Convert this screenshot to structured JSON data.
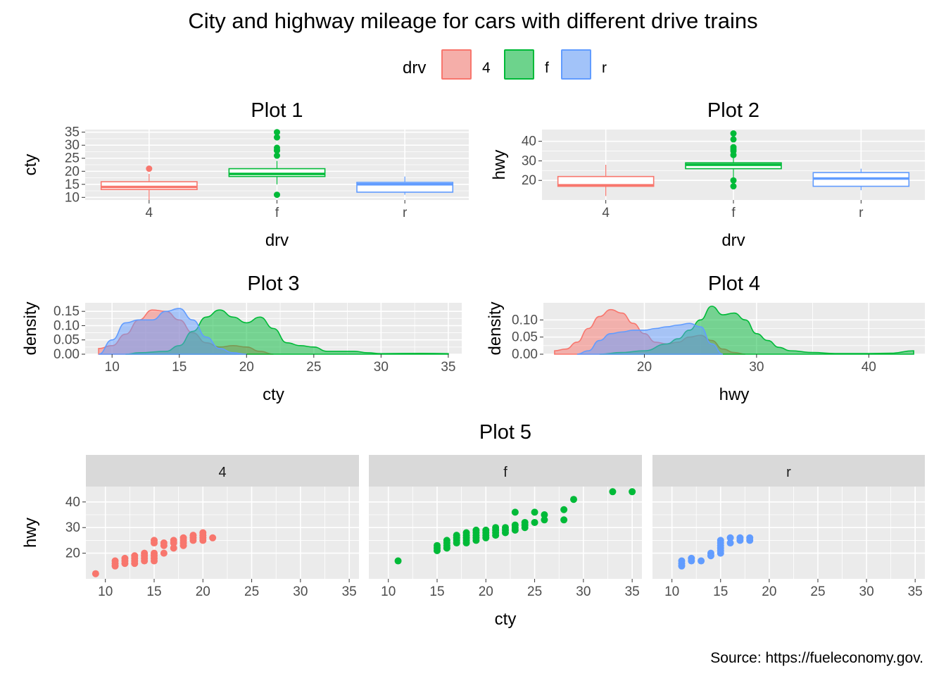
{
  "title": "City and highway mileage for cars with different drive trains",
  "caption": "Source: https://fueleconomy.gov.",
  "legend": {
    "title": "drv",
    "entries": [
      {
        "key": "4",
        "label": "4",
        "color": "#F8766D"
      },
      {
        "key": "f",
        "label": "f",
        "color": "#00BA38"
      },
      {
        "key": "r",
        "label": "r",
        "color": "#619CFF"
      }
    ]
  },
  "colors": {
    "panel_bg": "#EBEBEB",
    "grid": "#FFFFFF",
    "strip_bg": "#D9D9D9"
  },
  "chart_data": [
    {
      "id": "plot1",
      "title": "Plot 1",
      "type": "box",
      "xlabel": "drv",
      "ylabel": "cty",
      "categories": [
        "4",
        "f",
        "r"
      ],
      "ylim": [
        9,
        36
      ],
      "yticks": [
        10,
        15,
        20,
        25,
        30,
        35
      ],
      "boxes": [
        {
          "cat": "4",
          "min": 9,
          "q1": 13,
          "median": 14,
          "q3": 16,
          "max": 19,
          "outliers": [
            21
          ]
        },
        {
          "cat": "f",
          "min": 15,
          "q1": 18,
          "median": 19,
          "q3": 21,
          "max": 24,
          "outliers": [
            11,
            26,
            28,
            28,
            29,
            33,
            35
          ]
        },
        {
          "cat": "r",
          "min": 11,
          "q1": 12,
          "median": 15,
          "q3": 15.75,
          "max": 18,
          "outliers": []
        }
      ]
    },
    {
      "id": "plot2",
      "title": "Plot 2",
      "type": "box",
      "xlabel": "drv",
      "ylabel": "hwy",
      "categories": [
        "4",
        "f",
        "r"
      ],
      "ylim": [
        10,
        46
      ],
      "yticks": [
        20,
        30,
        40
      ],
      "boxes": [
        {
          "cat": "4",
          "min": 12,
          "q1": 17,
          "median": 17.5,
          "q3": 22,
          "max": 28,
          "outliers": []
        },
        {
          "cat": "f",
          "min": 21,
          "q1": 26,
          "median": 28,
          "q3": 29,
          "max": 32,
          "outliers": [
            17,
            20,
            33,
            35,
            36,
            37,
            41,
            44
          ]
        },
        {
          "cat": "r",
          "min": 15,
          "q1": 17,
          "median": 21,
          "q3": 24,
          "max": 26,
          "outliers": []
        }
      ]
    },
    {
      "id": "plot3",
      "title": "Plot 3",
      "type": "area",
      "xlabel": "cty",
      "ylabel": "density",
      "xlim": [
        8,
        36
      ],
      "ylim": [
        0,
        0.18
      ],
      "xticks": [
        10,
        15,
        20,
        25,
        30,
        35
      ],
      "yticks": [
        0.0,
        0.05,
        0.1,
        0.15
      ],
      "series": [
        {
          "key": "4",
          "x": [
            9,
            10,
            11,
            12,
            13,
            14,
            15,
            16,
            17,
            18,
            19,
            20,
            21,
            22
          ],
          "y": [
            0.02,
            0.03,
            0.07,
            0.12,
            0.155,
            0.15,
            0.12,
            0.075,
            0.04,
            0.025,
            0.03,
            0.025,
            0.01,
            0.0
          ]
        },
        {
          "key": "f",
          "x": [
            11,
            12,
            14,
            15,
            16,
            17,
            18,
            19,
            20,
            21,
            22,
            23,
            24,
            25,
            26,
            28,
            29,
            30,
            33,
            35
          ],
          "y": [
            0.0,
            0.005,
            0.01,
            0.03,
            0.08,
            0.13,
            0.155,
            0.13,
            0.11,
            0.13,
            0.09,
            0.04,
            0.03,
            0.025,
            0.01,
            0.01,
            0.005,
            0.002,
            0.003,
            0.002
          ]
        },
        {
          "key": "r",
          "x": [
            9,
            10,
            11,
            12,
            13,
            14,
            15,
            16,
            17,
            18,
            19,
            20
          ],
          "y": [
            0.0,
            0.05,
            0.11,
            0.12,
            0.12,
            0.15,
            0.16,
            0.12,
            0.06,
            0.02,
            0.005,
            0.0
          ]
        }
      ]
    },
    {
      "id": "plot4",
      "title": "Plot 4",
      "type": "area",
      "xlabel": "hwy",
      "ylabel": "density",
      "xlim": [
        11,
        45
      ],
      "ylim": [
        0,
        0.15
      ],
      "xticks": [
        20,
        30,
        40
      ],
      "yticks": [
        0.0,
        0.05,
        0.1
      ],
      "series": [
        {
          "key": "4",
          "x": [
            12,
            13,
            14,
            15,
            16,
            17,
            18,
            19,
            20,
            21,
            22,
            23,
            24,
            25,
            26,
            27,
            28,
            29
          ],
          "y": [
            0.01,
            0.015,
            0.035,
            0.075,
            0.11,
            0.13,
            0.12,
            0.09,
            0.06,
            0.035,
            0.03,
            0.035,
            0.05,
            0.055,
            0.04,
            0.015,
            0.005,
            0.0
          ]
        },
        {
          "key": "f",
          "x": [
            16,
            18,
            20,
            22,
            23,
            24,
            25,
            26,
            27,
            28,
            29,
            30,
            31,
            32,
            33,
            35,
            37,
            40,
            42,
            44
          ],
          "y": [
            0.0,
            0.005,
            0.01,
            0.03,
            0.045,
            0.07,
            0.1,
            0.14,
            0.115,
            0.12,
            0.1,
            0.06,
            0.04,
            0.02,
            0.01,
            0.005,
            0.002,
            0.002,
            0.003,
            0.01
          ]
        },
        {
          "key": "r",
          "x": [
            14,
            15,
            16,
            17,
            18,
            19,
            20,
            21,
            22,
            23,
            24,
            25,
            26,
            27
          ],
          "y": [
            0.0,
            0.01,
            0.04,
            0.06,
            0.065,
            0.07,
            0.07,
            0.075,
            0.08,
            0.085,
            0.09,
            0.08,
            0.03,
            0.0
          ]
        }
      ]
    },
    {
      "id": "plot5",
      "title": "Plot 5",
      "type": "scatter",
      "xlabel": "cty",
      "ylabel": "hwy",
      "xlim": [
        8,
        36
      ],
      "ylim": [
        10,
        46
      ],
      "xticks": [
        10,
        15,
        20,
        25,
        30,
        35
      ],
      "yticks": [
        20,
        30,
        40
      ],
      "facets": [
        {
          "key": "4",
          "label": "4",
          "points": [
            [
              9,
              12
            ],
            [
              11,
              15
            ],
            [
              11,
              16
            ],
            [
              11,
              17
            ],
            [
              12,
              16
            ],
            [
              12,
              17
            ],
            [
              12,
              18
            ],
            [
              13,
              16
            ],
            [
              13,
              17
            ],
            [
              13,
              18
            ],
            [
              13,
              19
            ],
            [
              14,
              17
            ],
            [
              14,
              18
            ],
            [
              14,
              19
            ],
            [
              14,
              20
            ],
            [
              15,
              17
            ],
            [
              15,
              18
            ],
            [
              15,
              19
            ],
            [
              15,
              20
            ],
            [
              15,
              24
            ],
            [
              15,
              25
            ],
            [
              16,
              20
            ],
            [
              16,
              23
            ],
            [
              16,
              24
            ],
            [
              17,
              22
            ],
            [
              17,
              24
            ],
            [
              17,
              25
            ],
            [
              18,
              23
            ],
            [
              18,
              24
            ],
            [
              18,
              25
            ],
            [
              18,
              26
            ],
            [
              19,
              25
            ],
            [
              19,
              26
            ],
            [
              19,
              27
            ],
            [
              20,
              25
            ],
            [
              20,
              26
            ],
            [
              20,
              27
            ],
            [
              20,
              28
            ],
            [
              21,
              26
            ]
          ]
        },
        {
          "key": "f",
          "label": "f",
          "points": [
            [
              11,
              17
            ],
            [
              15,
              21
            ],
            [
              15,
              22
            ],
            [
              15,
              23
            ],
            [
              16,
              22
            ],
            [
              16,
              23
            ],
            [
              16,
              24
            ],
            [
              16,
              25
            ],
            [
              17,
              24
            ],
            [
              17,
              25
            ],
            [
              17,
              26
            ],
            [
              17,
              27
            ],
            [
              18,
              24
            ],
            [
              18,
              25
            ],
            [
              18,
              26
            ],
            [
              18,
              27
            ],
            [
              18,
              28
            ],
            [
              19,
              25
            ],
            [
              19,
              26
            ],
            [
              19,
              27
            ],
            [
              19,
              28
            ],
            [
              19,
              29
            ],
            [
              20,
              26
            ],
            [
              20,
              27
            ],
            [
              20,
              28
            ],
            [
              20,
              29
            ],
            [
              21,
              27
            ],
            [
              21,
              28
            ],
            [
              21,
              29
            ],
            [
              21,
              30
            ],
            [
              22,
              28
            ],
            [
              22,
              29
            ],
            [
              22,
              30
            ],
            [
              23,
              29
            ],
            [
              23,
              30
            ],
            [
              23,
              31
            ],
            [
              23,
              36
            ],
            [
              24,
              30
            ],
            [
              24,
              31
            ],
            [
              24,
              32
            ],
            [
              25,
              32
            ],
            [
              25,
              36
            ],
            [
              26,
              33
            ],
            [
              26,
              35
            ],
            [
              28,
              33
            ],
            [
              28,
              37
            ],
            [
              29,
              41
            ],
            [
              33,
              44
            ],
            [
              35,
              44
            ]
          ]
        },
        {
          "key": "r",
          "label": "r",
          "points": [
            [
              11,
              15
            ],
            [
              11,
              16
            ],
            [
              11,
              17
            ],
            [
              12,
              17
            ],
            [
              12,
              18
            ],
            [
              13,
              17
            ],
            [
              14,
              19
            ],
            [
              14,
              20
            ],
            [
              15,
              20
            ],
            [
              15,
              21
            ],
            [
              15,
              22
            ],
            [
              15,
              23
            ],
            [
              15,
              24
            ],
            [
              15,
              25
            ],
            [
              16,
              24
            ],
            [
              16,
              26
            ],
            [
              17,
              25
            ],
            [
              17,
              26
            ],
            [
              18,
              25
            ],
            [
              18,
              26
            ]
          ]
        }
      ]
    }
  ]
}
